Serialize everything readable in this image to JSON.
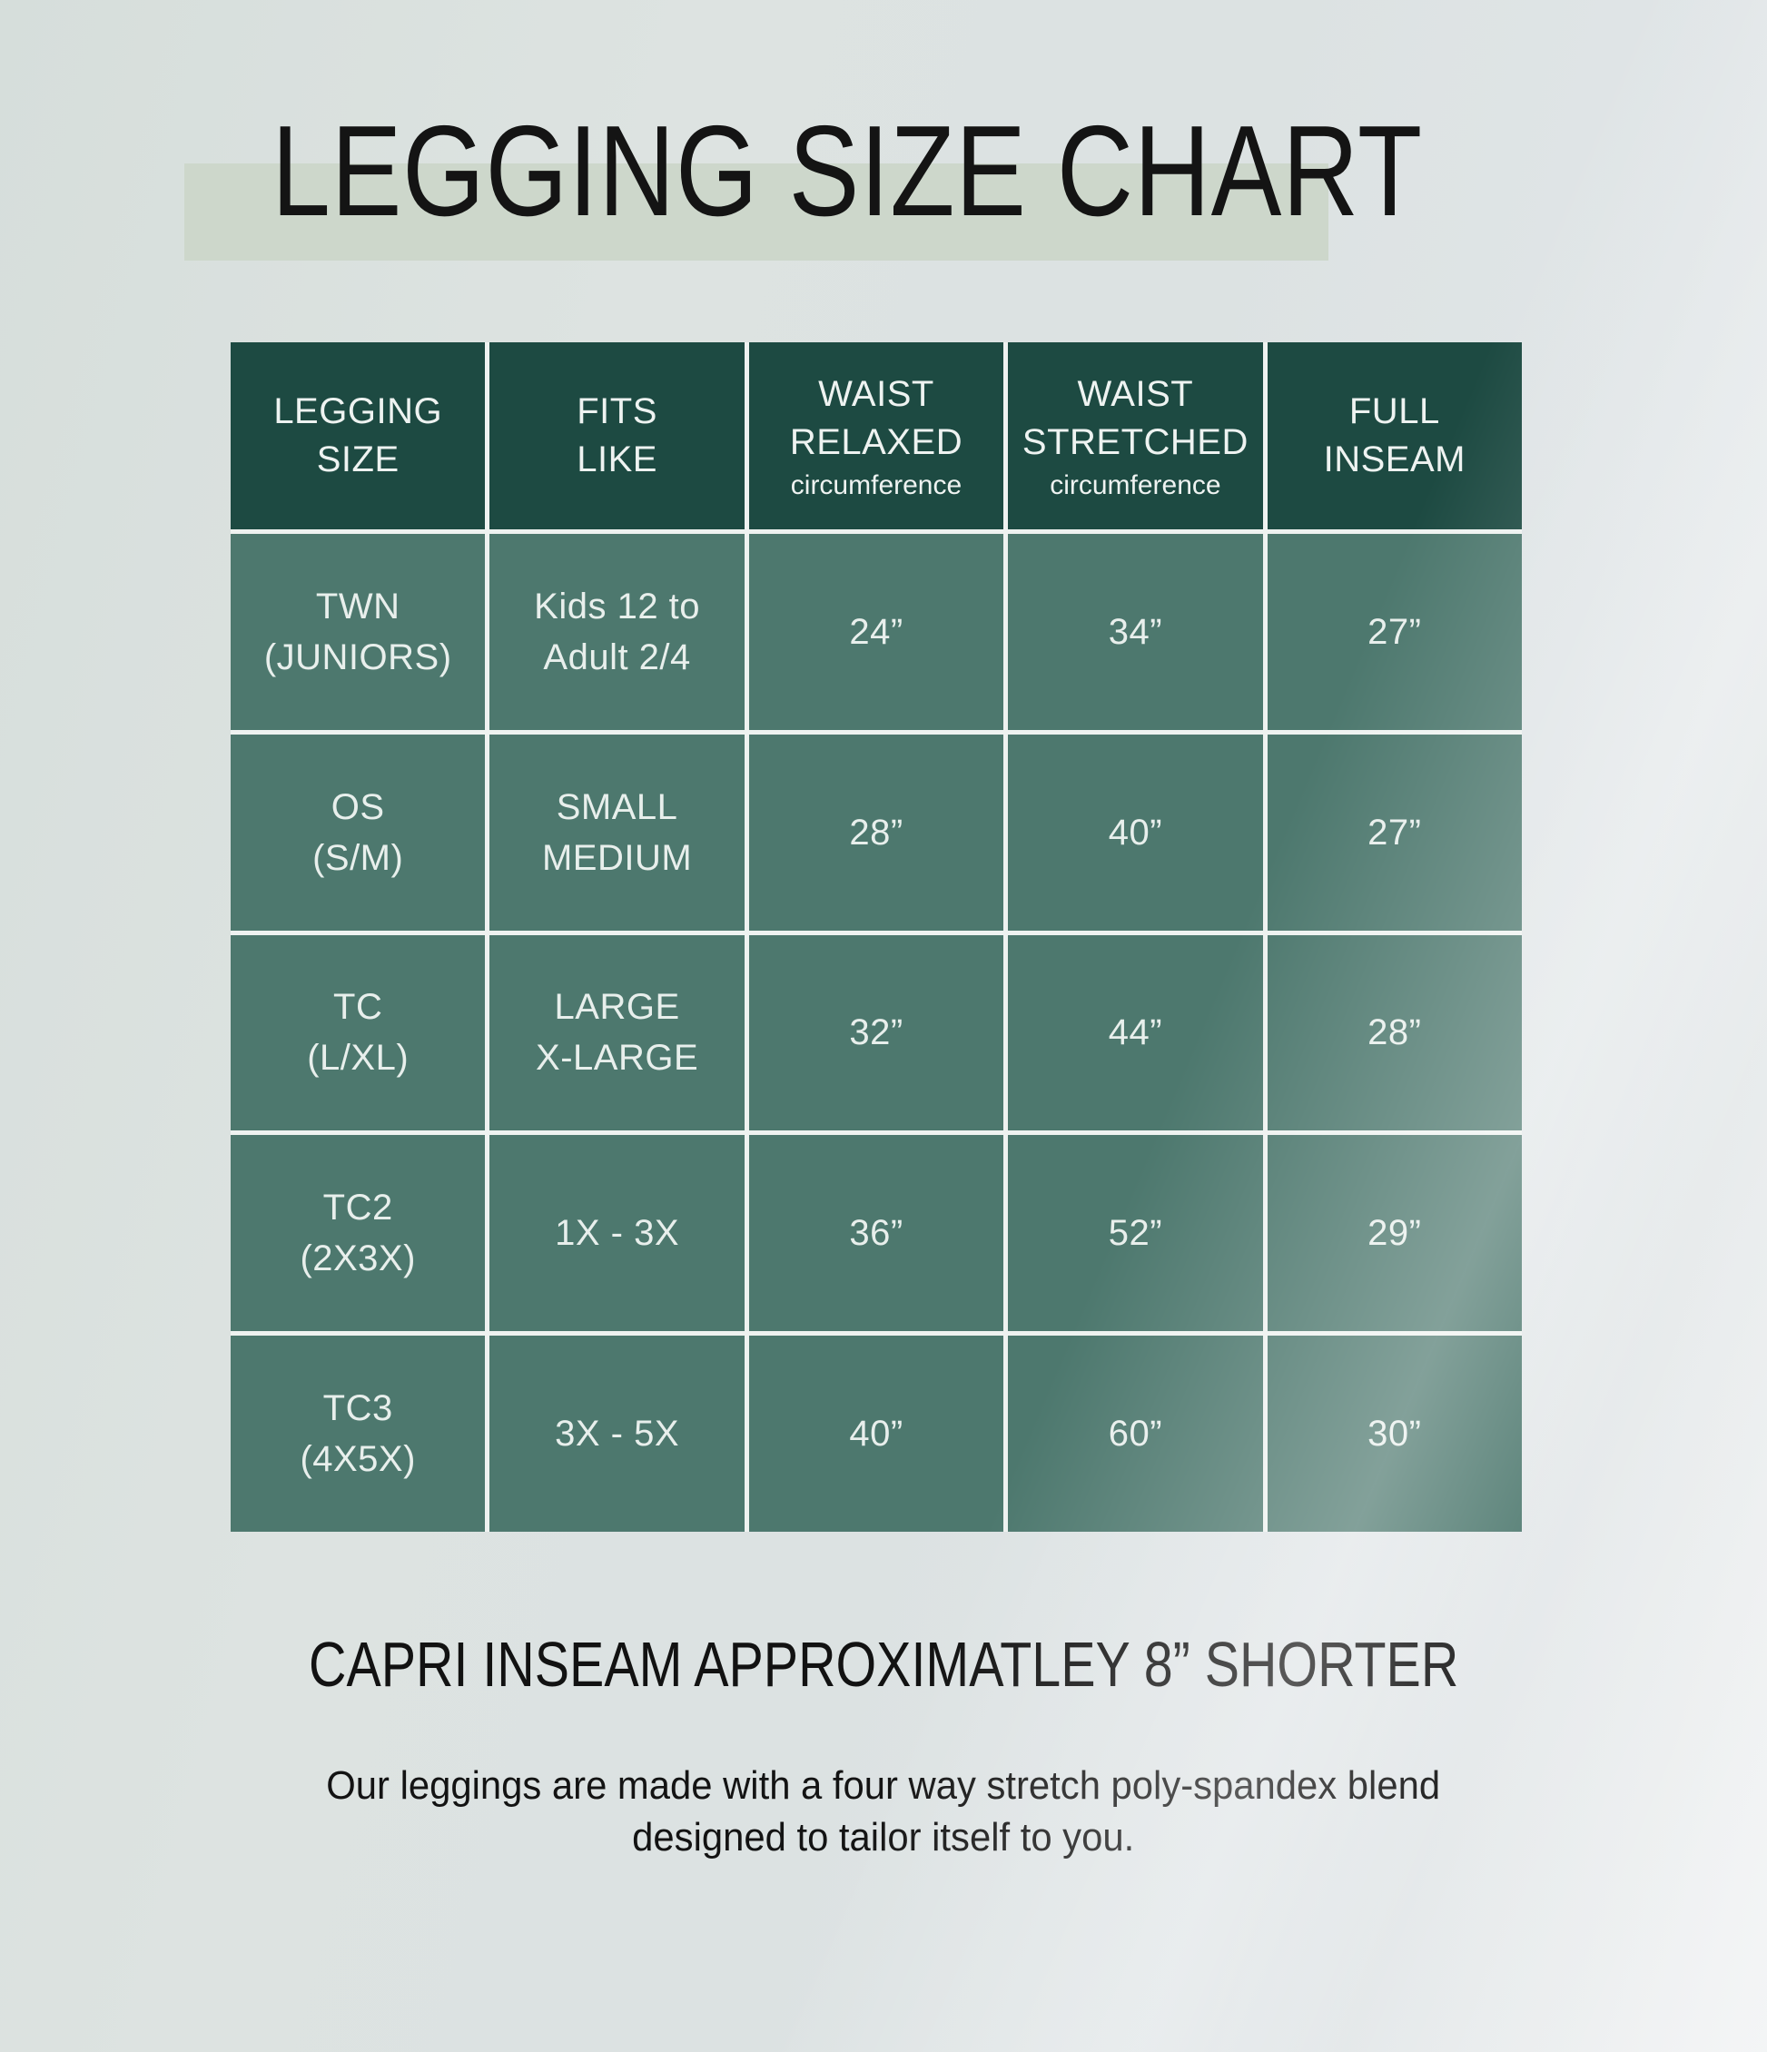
{
  "page": {
    "title": "LEGGING SIZE CHART",
    "capri_note": "CAPRI INSEAM APPROXIMATLEY 8” SHORTER",
    "description": "Our leggings are made with a four way stretch poly-spandex blend\ndesigned to tailor itself to you."
  },
  "colors": {
    "header_bg": "#1d4a42",
    "cell_bg": "#4d786e",
    "title_band": "#cdd7cb",
    "gridline": "#eef2f0",
    "title_text": "#141414",
    "cell_text": "#e8efec"
  },
  "table": {
    "headers": [
      {
        "title": "LEGGING\nSIZE",
        "note": ""
      },
      {
        "title": "FITS\nLIKE",
        "note": ""
      },
      {
        "title": "WAIST\nRELAXED",
        "note": "circumference"
      },
      {
        "title": "WAIST\nSTRETCHED",
        "note": "circumference"
      },
      {
        "title": "FULL\nINSEAM",
        "note": ""
      }
    ],
    "rows": [
      [
        "TWN\n(JUNIORS)",
        "Kids 12 to\nAdult 2/4",
        "24”",
        "34”",
        "27”"
      ],
      [
        "OS\n(S/M)",
        "SMALL\nMEDIUM",
        "28”",
        "40”",
        "27”"
      ],
      [
        "TC\n(L/XL)",
        "LARGE\nX-LARGE",
        "32”",
        "44”",
        "28”"
      ],
      [
        "TC2\n(2X3X)",
        "1X - 3X",
        "36”",
        "52”",
        "29”"
      ],
      [
        "TC3\n(4X5X)",
        "3X - 5X",
        "40”",
        "60”",
        "30”"
      ]
    ]
  },
  "chart_data": {
    "type": "table",
    "title": "LEGGING SIZE CHART",
    "columns": [
      "LEGGING SIZE",
      "FITS LIKE",
      "WAIST RELAXED circumference",
      "WAIST STRETCHED circumference",
      "FULL INSEAM"
    ],
    "rows": [
      [
        "TWN (JUNIORS)",
        "Kids 12 to Adult 2/4",
        "24”",
        "34”",
        "27”"
      ],
      [
        "OS (S/M)",
        "SMALL MEDIUM",
        "28”",
        "40”",
        "27”"
      ],
      [
        "TC (L/XL)",
        "LARGE X-LARGE",
        "32”",
        "44”",
        "28”"
      ],
      [
        "TC2 (2X3X)",
        "1X - 3X",
        "36”",
        "52”",
        "29”"
      ],
      [
        "TC3 (4X5X)",
        "3X - 5X",
        "40”",
        "60”",
        "30”"
      ]
    ],
    "notes": [
      "CAPRI INSEAM APPROXIMATLEY 8” SHORTER",
      "Our leggings are made with a four way stretch poly-spandex blend designed to tailor itself to you."
    ]
  }
}
